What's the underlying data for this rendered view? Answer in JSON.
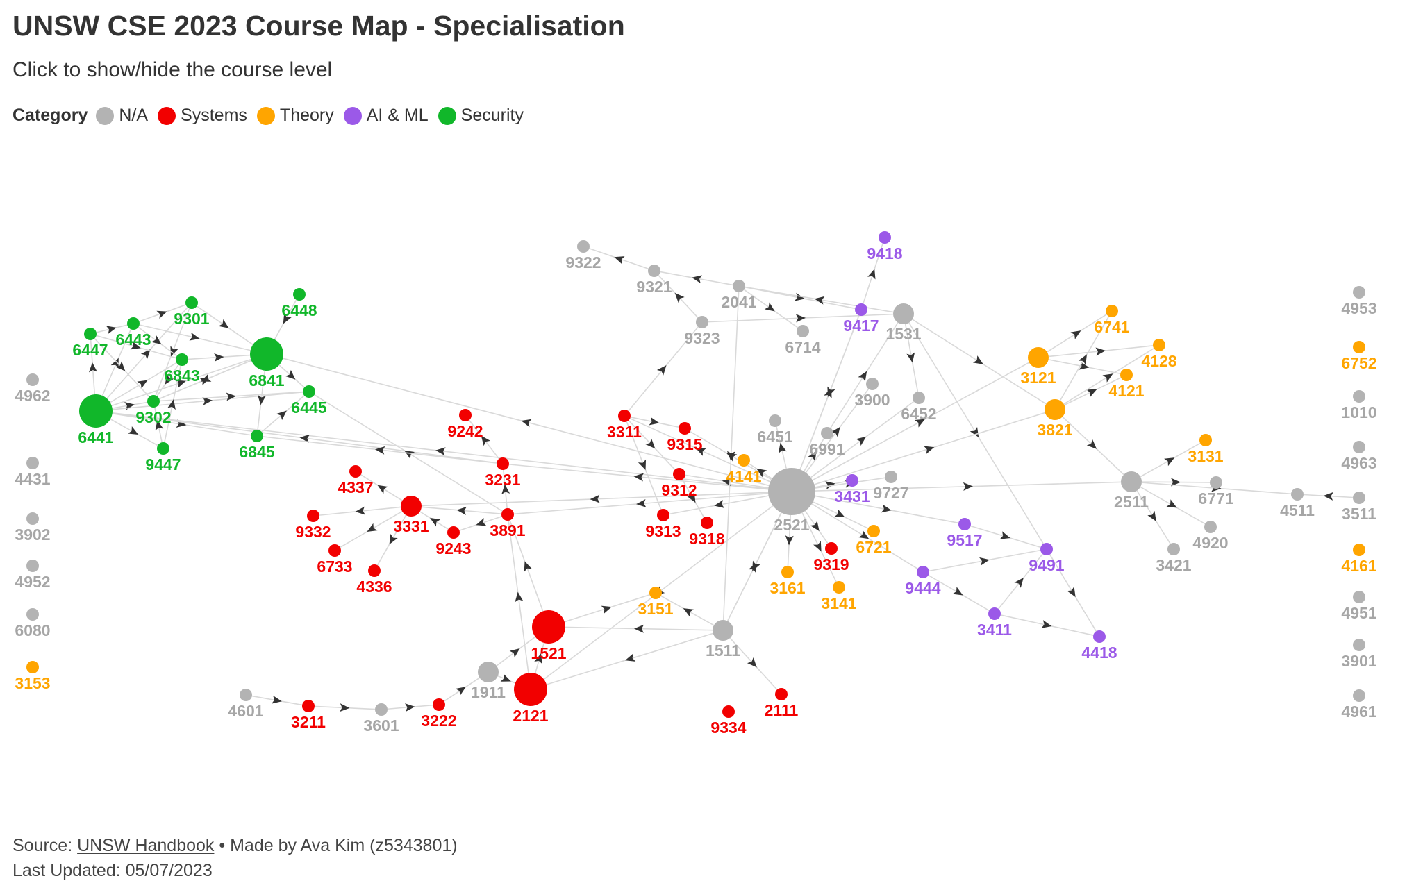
{
  "title": "UNSW CSE 2023 Course Map - Specialisation",
  "subtitle": "Click to show/hide the course level",
  "legend": {
    "title": "Category",
    "items": [
      {
        "label": "N/A",
        "color": "#b3b3b3"
      },
      {
        "label": "Systems",
        "color": "#f20000"
      },
      {
        "label": "Theory",
        "color": "#ffa500"
      },
      {
        "label": "AI & ML",
        "color": "#9b59e8"
      },
      {
        "label": "Security",
        "color": "#11b72a"
      }
    ]
  },
  "footer": {
    "source_prefix": "Source:",
    "source_link": "UNSW Handbook",
    "made_by": "• Made by Ava Kim (z5343801)",
    "updated": "Last Updated: 05/07/2023"
  },
  "colors": {
    "na": "#b3b3b3",
    "systems": "#f20000",
    "theory": "#ffa500",
    "ai": "#9b59e8",
    "security": "#11b72a",
    "edge": "#d9d9d9",
    "arrow": "#333333"
  },
  "nodes": [
    {
      "id": "6441",
      "cat": "security",
      "size": "large"
    },
    {
      "id": "6841",
      "cat": "security",
      "size": "large"
    },
    {
      "id": "6447",
      "cat": "security",
      "size": "small"
    },
    {
      "id": "6443",
      "cat": "security",
      "size": "small"
    },
    {
      "id": "9301",
      "cat": "security",
      "size": "small"
    },
    {
      "id": "6448",
      "cat": "security",
      "size": "small"
    },
    {
      "id": "6843",
      "cat": "security",
      "size": "small"
    },
    {
      "id": "9302",
      "cat": "security",
      "size": "small"
    },
    {
      "id": "6445",
      "cat": "security",
      "size": "small"
    },
    {
      "id": "9447",
      "cat": "security",
      "size": "small"
    },
    {
      "id": "6845",
      "cat": "security",
      "size": "small"
    },
    {
      "id": "4962",
      "cat": "na",
      "size": "small"
    },
    {
      "id": "4431",
      "cat": "na",
      "size": "small"
    },
    {
      "id": "3902",
      "cat": "na",
      "size": "small"
    },
    {
      "id": "4952",
      "cat": "na",
      "size": "small"
    },
    {
      "id": "6080",
      "cat": "na",
      "size": "small"
    },
    {
      "id": "3153",
      "cat": "theory",
      "size": "small"
    },
    {
      "id": "9242",
      "cat": "systems",
      "size": "small"
    },
    {
      "id": "3231",
      "cat": "systems",
      "size": "small"
    },
    {
      "id": "4337",
      "cat": "systems",
      "size": "small"
    },
    {
      "id": "3331",
      "cat": "systems",
      "size": "medium"
    },
    {
      "id": "9332",
      "cat": "systems",
      "size": "small"
    },
    {
      "id": "6733",
      "cat": "systems",
      "size": "small"
    },
    {
      "id": "4336",
      "cat": "systems",
      "size": "small"
    },
    {
      "id": "9243",
      "cat": "systems",
      "size": "small"
    },
    {
      "id": "3891",
      "cat": "systems",
      "size": "small"
    },
    {
      "id": "1521",
      "cat": "systems",
      "size": "large"
    },
    {
      "id": "2121",
      "cat": "systems",
      "size": "large"
    },
    {
      "id": "1911",
      "cat": "na",
      "size": "medium"
    },
    {
      "id": "3222",
      "cat": "systems",
      "size": "small"
    },
    {
      "id": "3601",
      "cat": "na",
      "size": "small"
    },
    {
      "id": "3211",
      "cat": "systems",
      "size": "small"
    },
    {
      "id": "4601",
      "cat": "na",
      "size": "small"
    },
    {
      "id": "9322",
      "cat": "na",
      "size": "small"
    },
    {
      "id": "9321",
      "cat": "na",
      "size": "small"
    },
    {
      "id": "2041",
      "cat": "na",
      "size": "small"
    },
    {
      "id": "9323",
      "cat": "na",
      "size": "small"
    },
    {
      "id": "6714",
      "cat": "na",
      "size": "small"
    },
    {
      "id": "9418",
      "cat": "ai",
      "size": "small"
    },
    {
      "id": "9417",
      "cat": "ai",
      "size": "small"
    },
    {
      "id": "1531",
      "cat": "na",
      "size": "medium"
    },
    {
      "id": "3900",
      "cat": "na",
      "size": "small"
    },
    {
      "id": "6452",
      "cat": "na",
      "size": "small"
    },
    {
      "id": "6451",
      "cat": "na",
      "size": "small"
    },
    {
      "id": "6991",
      "cat": "na",
      "size": "small"
    },
    {
      "id": "3311",
      "cat": "systems",
      "size": "small"
    },
    {
      "id": "9315",
      "cat": "systems",
      "size": "small"
    },
    {
      "id": "4141",
      "cat": "theory",
      "size": "small"
    },
    {
      "id": "9312",
      "cat": "systems",
      "size": "small"
    },
    {
      "id": "9313",
      "cat": "systems",
      "size": "small"
    },
    {
      "id": "9318",
      "cat": "systems",
      "size": "small"
    },
    {
      "id": "2521",
      "cat": "na",
      "size": "huge"
    },
    {
      "id": "3431",
      "cat": "ai",
      "size": "small"
    },
    {
      "id": "9727",
      "cat": "na",
      "size": "small"
    },
    {
      "id": "9319",
      "cat": "systems",
      "size": "small"
    },
    {
      "id": "6721",
      "cat": "theory",
      "size": "small"
    },
    {
      "id": "3161",
      "cat": "theory",
      "size": "small"
    },
    {
      "id": "3141",
      "cat": "theory",
      "size": "small"
    },
    {
      "id": "3151",
      "cat": "theory",
      "size": "small"
    },
    {
      "id": "1511",
      "cat": "na",
      "size": "medium"
    },
    {
      "id": "2111",
      "cat": "systems",
      "size": "small"
    },
    {
      "id": "9334",
      "cat": "systems",
      "size": "small"
    },
    {
      "id": "9517",
      "cat": "ai",
      "size": "small"
    },
    {
      "id": "9491",
      "cat": "ai",
      "size": "small"
    },
    {
      "id": "9444",
      "cat": "ai",
      "size": "small"
    },
    {
      "id": "3411",
      "cat": "ai",
      "size": "small"
    },
    {
      "id": "4418",
      "cat": "ai",
      "size": "small"
    },
    {
      "id": "3121",
      "cat": "theory",
      "size": "medium"
    },
    {
      "id": "3821",
      "cat": "theory",
      "size": "medium"
    },
    {
      "id": "6741",
      "cat": "theory",
      "size": "small"
    },
    {
      "id": "4128",
      "cat": "theory",
      "size": "small"
    },
    {
      "id": "4121",
      "cat": "theory",
      "size": "small"
    },
    {
      "id": "2511",
      "cat": "na",
      "size": "medium"
    },
    {
      "id": "3131",
      "cat": "theory",
      "size": "small"
    },
    {
      "id": "6771",
      "cat": "na",
      "size": "small"
    },
    {
      "id": "4920",
      "cat": "na",
      "size": "small"
    },
    {
      "id": "3421",
      "cat": "na",
      "size": "small"
    },
    {
      "id": "4511",
      "cat": "na",
      "size": "small"
    },
    {
      "id": "4953",
      "cat": "na",
      "size": "small"
    },
    {
      "id": "6752",
      "cat": "theory",
      "size": "small"
    },
    {
      "id": "1010",
      "cat": "na",
      "size": "small"
    },
    {
      "id": "4963",
      "cat": "na",
      "size": "small"
    },
    {
      "id": "3511",
      "cat": "na",
      "size": "small"
    },
    {
      "id": "4161",
      "cat": "theory",
      "size": "small"
    },
    {
      "id": "4951",
      "cat": "na",
      "size": "small"
    },
    {
      "id": "3901",
      "cat": "na",
      "size": "small"
    },
    {
      "id": "4961",
      "cat": "na",
      "size": "small"
    }
  ],
  "edges": [
    [
      "6441",
      "6447"
    ],
    [
      "6441",
      "6443"
    ],
    [
      "6441",
      "9301"
    ],
    [
      "6441",
      "6843"
    ],
    [
      "6441",
      "9302"
    ],
    [
      "6441",
      "9447"
    ],
    [
      "6441",
      "6841"
    ],
    [
      "6441",
      "6445"
    ],
    [
      "6447",
      "6443"
    ],
    [
      "6443",
      "9301"
    ],
    [
      "6447",
      "9302"
    ],
    [
      "6443",
      "6841"
    ],
    [
      "9301",
      "6841"
    ],
    [
      "6843",
      "6841"
    ],
    [
      "9302",
      "6841"
    ],
    [
      "6448",
      "6841"
    ],
    [
      "6841",
      "6445"
    ],
    [
      "6841",
      "6845"
    ],
    [
      "9302",
      "6445"
    ],
    [
      "9447",
      "6843"
    ],
    [
      "6841",
      "9302"
    ],
    [
      "6447",
      "6843"
    ],
    [
      "6441",
      "6845"
    ],
    [
      "6845",
      "6445"
    ],
    [
      "6843",
      "9302"
    ],
    [
      "9301",
      "9302"
    ],
    [
      "6443",
      "6843"
    ],
    [
      "9447",
      "9302"
    ],
    [
      "2521",
      "6841"
    ],
    [
      "2521",
      "6441"
    ],
    [
      "3231",
      "6441"
    ],
    [
      "3891",
      "6445"
    ],
    [
      "3231",
      "6845"
    ],
    [
      "2521",
      "3231"
    ],
    [
      "3231",
      "9242"
    ],
    [
      "3891",
      "3231"
    ],
    [
      "3331",
      "4337"
    ],
    [
      "3331",
      "9332"
    ],
    [
      "3331",
      "6733"
    ],
    [
      "3331",
      "4336"
    ],
    [
      "9243",
      "3331"
    ],
    [
      "3891",
      "9243"
    ],
    [
      "3891",
      "3331"
    ],
    [
      "1521",
      "3891"
    ],
    [
      "2121",
      "3891"
    ],
    [
      "2521",
      "3891"
    ],
    [
      "2121",
      "1521"
    ],
    [
      "1911",
      "1521"
    ],
    [
      "1911",
      "2121"
    ],
    [
      "3222",
      "1911"
    ],
    [
      "3601",
      "3222"
    ],
    [
      "3211",
      "3601"
    ],
    [
      "4601",
      "3211"
    ],
    [
      "1521",
      "3151"
    ],
    [
      "1511",
      "1521"
    ],
    [
      "1511",
      "2121"
    ],
    [
      "1511",
      "2521"
    ],
    [
      "1511",
      "3151"
    ],
    [
      "1511",
      "2111"
    ],
    [
      "2521",
      "3311"
    ],
    [
      "3311",
      "9315"
    ],
    [
      "3311",
      "9312"
    ],
    [
      "3311",
      "9313"
    ],
    [
      "9312",
      "9318"
    ],
    [
      "2521",
      "9315"
    ],
    [
      "2521",
      "4141"
    ],
    [
      "2521",
      "9312"
    ],
    [
      "3311",
      "9323"
    ],
    [
      "9323",
      "9321"
    ],
    [
      "9321",
      "9322"
    ],
    [
      "2041",
      "9321"
    ],
    [
      "2041",
      "6714"
    ],
    [
      "2041",
      "9417"
    ],
    [
      "9323",
      "1531"
    ],
    [
      "1531",
      "2041"
    ],
    [
      "9417",
      "9418"
    ],
    [
      "2521",
      "9417"
    ],
    [
      "2521",
      "3900"
    ],
    [
      "2521",
      "6452"
    ],
    [
      "2521",
      "6451"
    ],
    [
      "2521",
      "6991"
    ],
    [
      "1531",
      "6452"
    ],
    [
      "2521",
      "3431"
    ],
    [
      "2521",
      "9727"
    ],
    [
      "2521",
      "9319"
    ],
    [
      "2521",
      "6721"
    ],
    [
      "2521",
      "3161"
    ],
    [
      "2521",
      "3141"
    ],
    [
      "2521",
      "1511"
    ],
    [
      "2521",
      "9517"
    ],
    [
      "2521",
      "9444"
    ],
    [
      "9444",
      "9491"
    ],
    [
      "9444",
      "3411"
    ],
    [
      "3411",
      "9491"
    ],
    [
      "3411",
      "4418"
    ],
    [
      "9491",
      "4418"
    ],
    [
      "1531",
      "9491"
    ],
    [
      "9517",
      "9491"
    ],
    [
      "2521",
      "3121"
    ],
    [
      "2521",
      "3821"
    ],
    [
      "1531",
      "3821"
    ],
    [
      "3121",
      "6741"
    ],
    [
      "3121",
      "4128"
    ],
    [
      "3121",
      "4121"
    ],
    [
      "3821",
      "4121"
    ],
    [
      "3821",
      "6741"
    ],
    [
      "3821",
      "4128"
    ],
    [
      "2521",
      "2511"
    ],
    [
      "2511",
      "3131"
    ],
    [
      "2511",
      "6771"
    ],
    [
      "2511",
      "4920"
    ],
    [
      "2511",
      "3421"
    ],
    [
      "2511",
      "4511"
    ],
    [
      "3511",
      "4511"
    ],
    [
      "3821",
      "2511"
    ],
    [
      "2041",
      "1511"
    ],
    [
      "2521",
      "3331"
    ],
    [
      "2521",
      "2121"
    ],
    [
      "2521",
      "9313"
    ],
    [
      "6991",
      "1531"
    ],
    [
      "9417",
      "2521"
    ]
  ]
}
